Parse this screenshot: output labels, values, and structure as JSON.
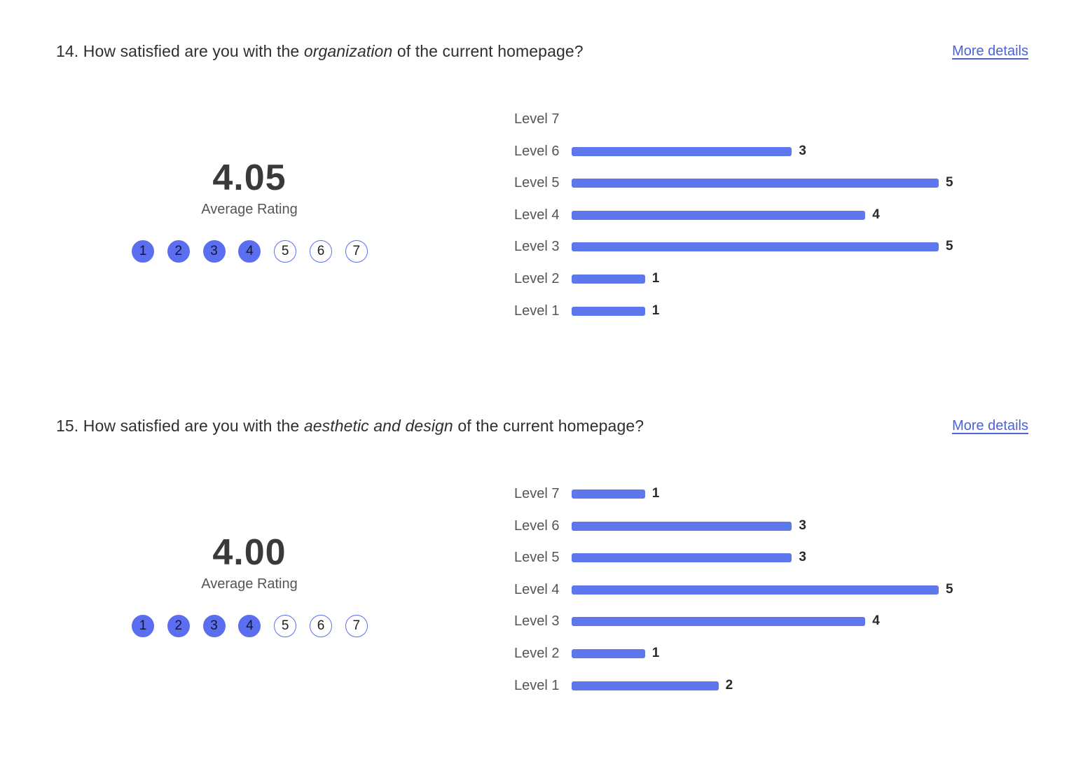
{
  "colors": {
    "bar": "#5f77ec",
    "dot_fill": "#5b6ef0",
    "link": "#4b62d8"
  },
  "more_details_label": "More details",
  "average_label": "Average Rating",
  "scale_points": [
    "1",
    "2",
    "3",
    "4",
    "5",
    "6",
    "7"
  ],
  "questions": [
    {
      "number": "14.",
      "text_before": "How satisfied are you with the",
      "text_emphasis": "organization",
      "text_after": "of the current homepage?",
      "average": "4.05",
      "filled_dots": 4
    },
    {
      "number": "15.",
      "text_before": "How satisfied are you with the",
      "text_emphasis": "aesthetic and design",
      "text_after": "of the current homepage?",
      "average": "4.00",
      "filled_dots": 4
    }
  ],
  "chart_data": [
    {
      "type": "bar",
      "orientation": "horizontal",
      "categories": [
        "Level 7",
        "Level 6",
        "Level 5",
        "Level 4",
        "Level 3",
        "Level 2",
        "Level 1"
      ],
      "values": [
        0,
        3,
        5,
        4,
        5,
        1,
        1
      ],
      "data_labels": [
        "",
        "3",
        "5",
        "4",
        "5",
        "1",
        "1"
      ],
      "xlim": [
        0,
        5
      ],
      "grid": false
    },
    {
      "type": "bar",
      "orientation": "horizontal",
      "categories": [
        "Level 7",
        "Level 6",
        "Level 5",
        "Level 4",
        "Level 3",
        "Level 2",
        "Level 1"
      ],
      "values": [
        1,
        3,
        3,
        5,
        4,
        1,
        2
      ],
      "data_labels": [
        "1",
        "3",
        "3",
        "5",
        "4",
        "1",
        "2"
      ],
      "xlim": [
        0,
        5
      ],
      "grid": false
    }
  ]
}
